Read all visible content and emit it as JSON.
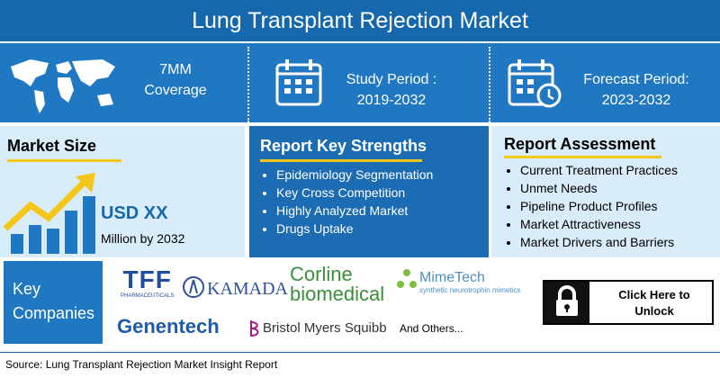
{
  "header": {
    "title": "Lung Transplant Rejection Market"
  },
  "highlights": [
    {
      "line1": "7MM",
      "line2": "Coverage"
    },
    {
      "line1": "Study Period :",
      "line2": "2019-2032"
    },
    {
      "line1": "Forecast Period:",
      "line2": "2023-2032"
    }
  ],
  "market_size": {
    "title": "Market Size",
    "value": "USD XX",
    "note": "Million by 2032"
  },
  "key_strengths": {
    "title": "Report Key Strengths",
    "items": [
      "Epidemiology Segmentation",
      "Key Cross Competition",
      "Highly Analyzed Market",
      "Drugs Uptake"
    ]
  },
  "assessment": {
    "title": "Report Assessment",
    "items": [
      "Current Treatment Practices",
      "Unmet Needs",
      "Pipeline Product Profiles",
      "Market Attractiveness",
      "Market Drivers and Barriers"
    ]
  },
  "companies": {
    "title_line1": "Key",
    "title_line2": "Companies",
    "logos": [
      {
        "name": "TFF",
        "tagline": "PHARMACEUTICALS"
      },
      {
        "name": "KAMADA"
      },
      {
        "name": "Corline",
        "tagline": "biomedical"
      },
      {
        "name": "MimeTech",
        "tagline": "synthetic neurotrophin mimetics"
      },
      {
        "name": "Genentech"
      },
      {
        "name": "Bristol Myers Squibb"
      }
    ],
    "others": "And Others..."
  },
  "cta": {
    "line1": "Click Here to",
    "line2": "Unlock"
  },
  "source": "Source: Lung Transplant Rejection Market Insight Report"
}
